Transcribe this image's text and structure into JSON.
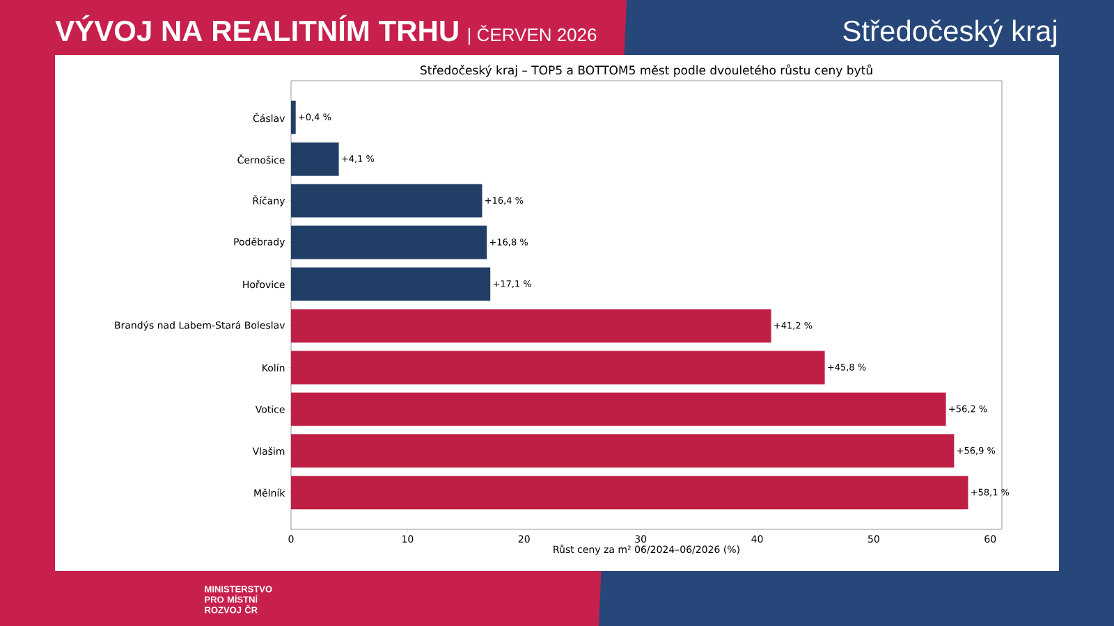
{
  "chart_data": {
    "type": "bar",
    "orientation": "horizontal",
    "title": "Středočeský kraj – TOP5 a BOTTOM5 měst podle dvouletého růstu ceny bytů",
    "xlabel": "Růst ceny za m² 06/2024–06/2026 (%)",
    "categories": [
      "Čáslav",
      "Černošice",
      "Říčany",
      "Poděbrady",
      "Hořovice",
      "Brandýs nad Labem-Stará Boleslav",
      "Kolín",
      "Votice",
      "Vlašim",
      "Mělník"
    ],
    "values": [
      0.4,
      4.1,
      16.4,
      16.8,
      17.1,
      41.2,
      45.8,
      56.2,
      56.9,
      58.1
    ],
    "value_labels": [
      "+0,4 %",
      "+4,1 %",
      "+16,4 %",
      "+16,8 %",
      "+17,1 %",
      "+41,2 %",
      "+45,8 %",
      "+56,2 %",
      "+56,9 %",
      "+58,1 %"
    ],
    "colors": [
      "#213f66",
      "#213f66",
      "#213f66",
      "#213f66",
      "#213f66",
      "#c01f45",
      "#c01f45",
      "#c01f45",
      "#c01f45",
      "#c01f45"
    ],
    "xlim": [
      0,
      61
    ],
    "xticks": [
      0,
      10,
      20,
      30,
      40,
      50,
      60
    ],
    "grid": false,
    "annotations": [
      "VÝVOJ NA REALITNÍM TRHU",
      "| ČERVEN 2026",
      "Středočeský kraj",
      "MINISTERSTVO PRO MÍSTNÍ ROZVOJ ČR"
    ]
  }
}
